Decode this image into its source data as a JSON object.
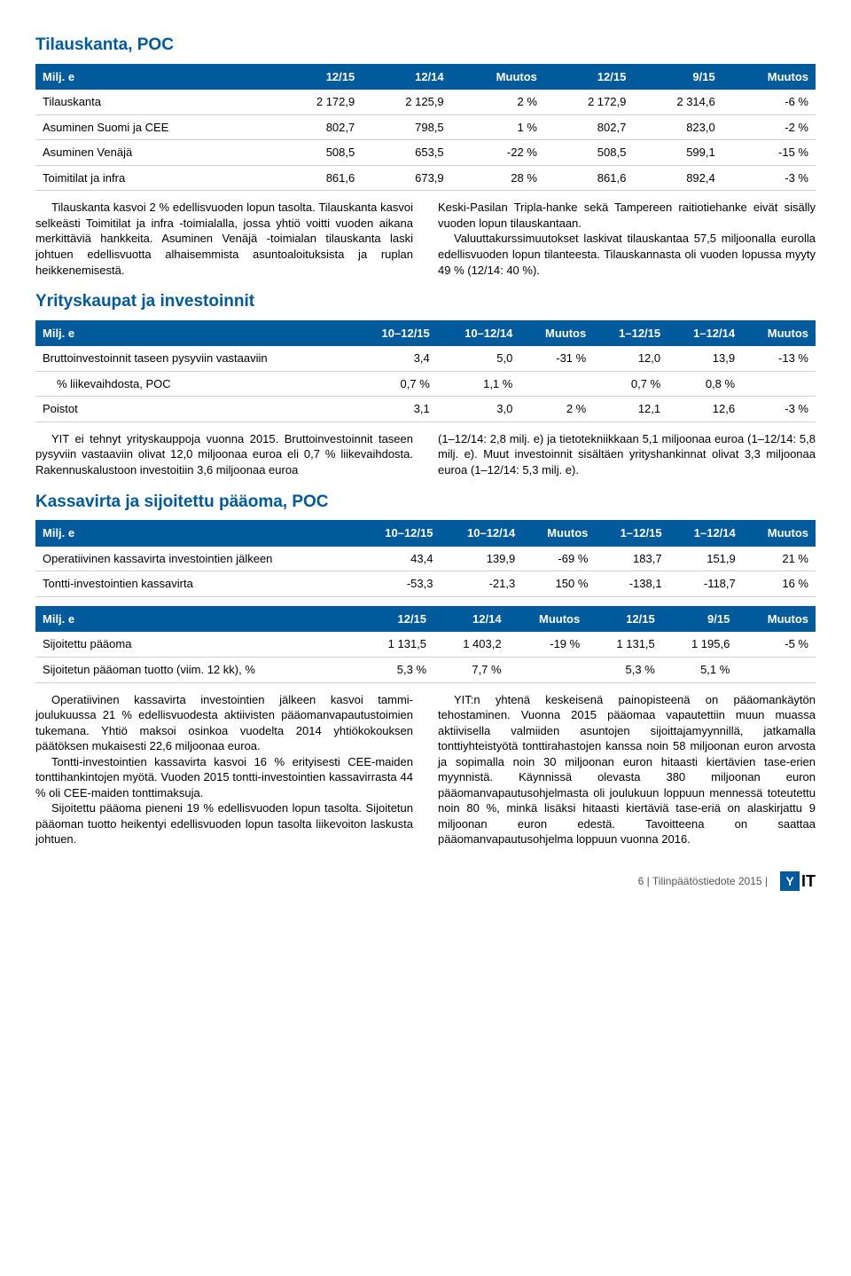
{
  "colors": {
    "brand_blue": "#005a9b",
    "text": "#000000",
    "rule": "#d0d0d0",
    "bg": "#ffffff"
  },
  "fonts": {
    "body_family": "Arial",
    "body_size_pt": 10,
    "heading_size_pt": 14,
    "heading_weight": "bold"
  },
  "section1": {
    "title": "Tilauskanta, POC",
    "headers": [
      "Milj. e",
      "12/15",
      "12/14",
      "Muutos",
      "12/15",
      "9/15",
      "Muutos"
    ],
    "rows": [
      [
        "Tilauskanta",
        "2 172,9",
        "2 125,9",
        "2 %",
        "2 172,9",
        "2 314,6",
        "-6 %"
      ],
      [
        "Asuminen Suomi ja CEE",
        "802,7",
        "798,5",
        "1 %",
        "802,7",
        "823,0",
        "-2 %"
      ],
      [
        "Asuminen Venäjä",
        "508,5",
        "653,5",
        "-22 %",
        "508,5",
        "599,1",
        "-15 %"
      ],
      [
        "Toimitilat ja infra",
        "861,6",
        "673,9",
        "28 %",
        "861,6",
        "892,4",
        "-3 %"
      ]
    ],
    "left_p1": "Tilauskanta kasvoi 2 % edellisvuoden lopun tasolta. Tilauskanta kasvoi selkeästi Toimitilat ja infra -toimialalla, jossa yhtiö voitti vuoden aikana merkittäviä hankkeita. Asuminen Venäjä -toimialan tilauskanta laski johtuen edellisvuotta alhaisemmista asuntoaloituksista ja ruplan heikkenemisestä.",
    "right_p1": "Keski-Pasilan Tripla-hanke sekä Tampereen raitiotiehanke eivät sisälly vuoden lopun tilauskantaan.",
    "right_p2": "Valuuttakurssimuutokset laskivat tilauskantaa 57,5 miljoonalla eurolla edellisvuoden lopun tilanteesta. Tilauskannasta oli vuoden lopussa myyty 49 % (12/14: 40 %)."
  },
  "section2": {
    "title": "Yrityskaupat ja investoinnit",
    "headers": [
      "Milj. e",
      "10–12/15",
      "10–12/14",
      "Muutos",
      "1–12/15",
      "1–12/14",
      "Muutos"
    ],
    "rows": [
      {
        "cells": [
          "Bruttoinvestoinnit taseen pysyviin vastaaviin",
          "3,4",
          "5,0",
          "-31 %",
          "12,0",
          "13,9",
          "-13 %"
        ],
        "indent": false
      },
      {
        "cells": [
          "% liikevaihdosta, POC",
          "0,7 %",
          "1,1 %",
          "",
          "0,7 %",
          "0,8 %",
          ""
        ],
        "indent": true
      },
      {
        "cells": [
          "Poistot",
          "3,1",
          "3,0",
          "2 %",
          "12,1",
          "12,6",
          "-3 %"
        ],
        "indent": false
      }
    ],
    "left_p1": "YIT ei tehnyt yrityskauppoja vuonna 2015. Bruttoinvestoinnit taseen pysyviin vastaaviin olivat 12,0 miljoonaa euroa eli 0,7 % liikevaihdosta. Rakennuskalustoon investoitiin 3,6 miljoonaa euroa",
    "right_p1": "(1–12/14: 2,8 milj. e) ja tietotekniikkaan 5,1 miljoonaa euroa (1–12/14: 5,8 milj. e). Muut investoinnit sisältäen yrityshankinnat olivat 3,3 miljoonaa euroa (1–12/14: 5,3 milj. e)."
  },
  "section3": {
    "title": "Kassavirta ja sijoitettu pääoma, POC",
    "table_a": {
      "headers": [
        "Milj. e",
        "10–12/15",
        "10–12/14",
        "Muutos",
        "1–12/15",
        "1–12/14",
        "Muutos"
      ],
      "rows": [
        [
          "Operatiivinen kassavirta investointien jälkeen",
          "43,4",
          "139,9",
          "-69 %",
          "183,7",
          "151,9",
          "21 %"
        ],
        [
          "Tontti-investointien kassavirta",
          "-53,3",
          "-21,3",
          "150 %",
          "-138,1",
          "-118,7",
          "16 %"
        ]
      ]
    },
    "table_b": {
      "headers": [
        "Milj. e",
        "12/15",
        "12/14",
        "Muutos",
        "12/15",
        "9/15",
        "Muutos"
      ],
      "rows": [
        [
          "Sijoitettu pääoma",
          "1 131,5",
          "1 403,2",
          "-19 %",
          "1 131,5",
          "1 195,6",
          "-5 %"
        ],
        [
          "Sijoitetun pääoman tuotto (viim. 12 kk), %",
          "5,3 %",
          "7,7 %",
          "",
          "5,3 %",
          "5,1 %",
          ""
        ]
      ]
    },
    "left_p1": "Operatiivinen kassavirta investointien jälkeen kasvoi tammi-joulukuussa 21 % edellisvuodesta aktiivisten pääomanvapautustoimien tukemana. Yhtiö maksoi osinkoa vuodelta 2014 yhtiökokouksen päätöksen mukaisesti 22,6 miljoonaa euroa.",
    "left_p2": "Tontti-investointien kassavirta kasvoi 16 % erityisesti CEE-maiden tonttihankintojen myötä. Vuoden 2015 tontti-investointien kassavirrasta 44 % oli CEE-maiden tonttimaksuja.",
    "left_p3": "Sijoitettu pääoma pieneni 19 % edellisvuoden lopun tasolta. Sijoitetun pääoman tuotto heikentyi edellisvuoden lopun tasolta liikevoiton laskusta johtuen.",
    "right_p1": "YIT:n yhtenä keskeisenä painopisteenä on pääomankäytön tehostaminen. Vuonna 2015 pääomaa vapautettiin muun muassa aktiivisella valmiiden asuntojen sijoittajamyynnillä, jatkamalla tonttiyhteistyötä tonttirahastojen kanssa noin 58 miljoonan euron arvosta ja sopimalla noin 30 miljoonan euron hitaasti kiertävien tase-erien myynnistä. Käynnissä olevasta 380 miljoonan euron pääomanvapautusohjelmasta oli joulukuun loppuun mennessä toteutettu noin 80 %, minkä lisäksi hitaasti kiertäviä tase-eriä on alaskirjattu 9 miljoonan euron edestä. Tavoitteena on saattaa pääomanvapautusohjelma loppuun vuonna 2016."
  },
  "footer": {
    "text": "6  |  Tilinpäätöstiedote 2015  |",
    "logo_y": "Y",
    "logo_rest": "IT"
  }
}
